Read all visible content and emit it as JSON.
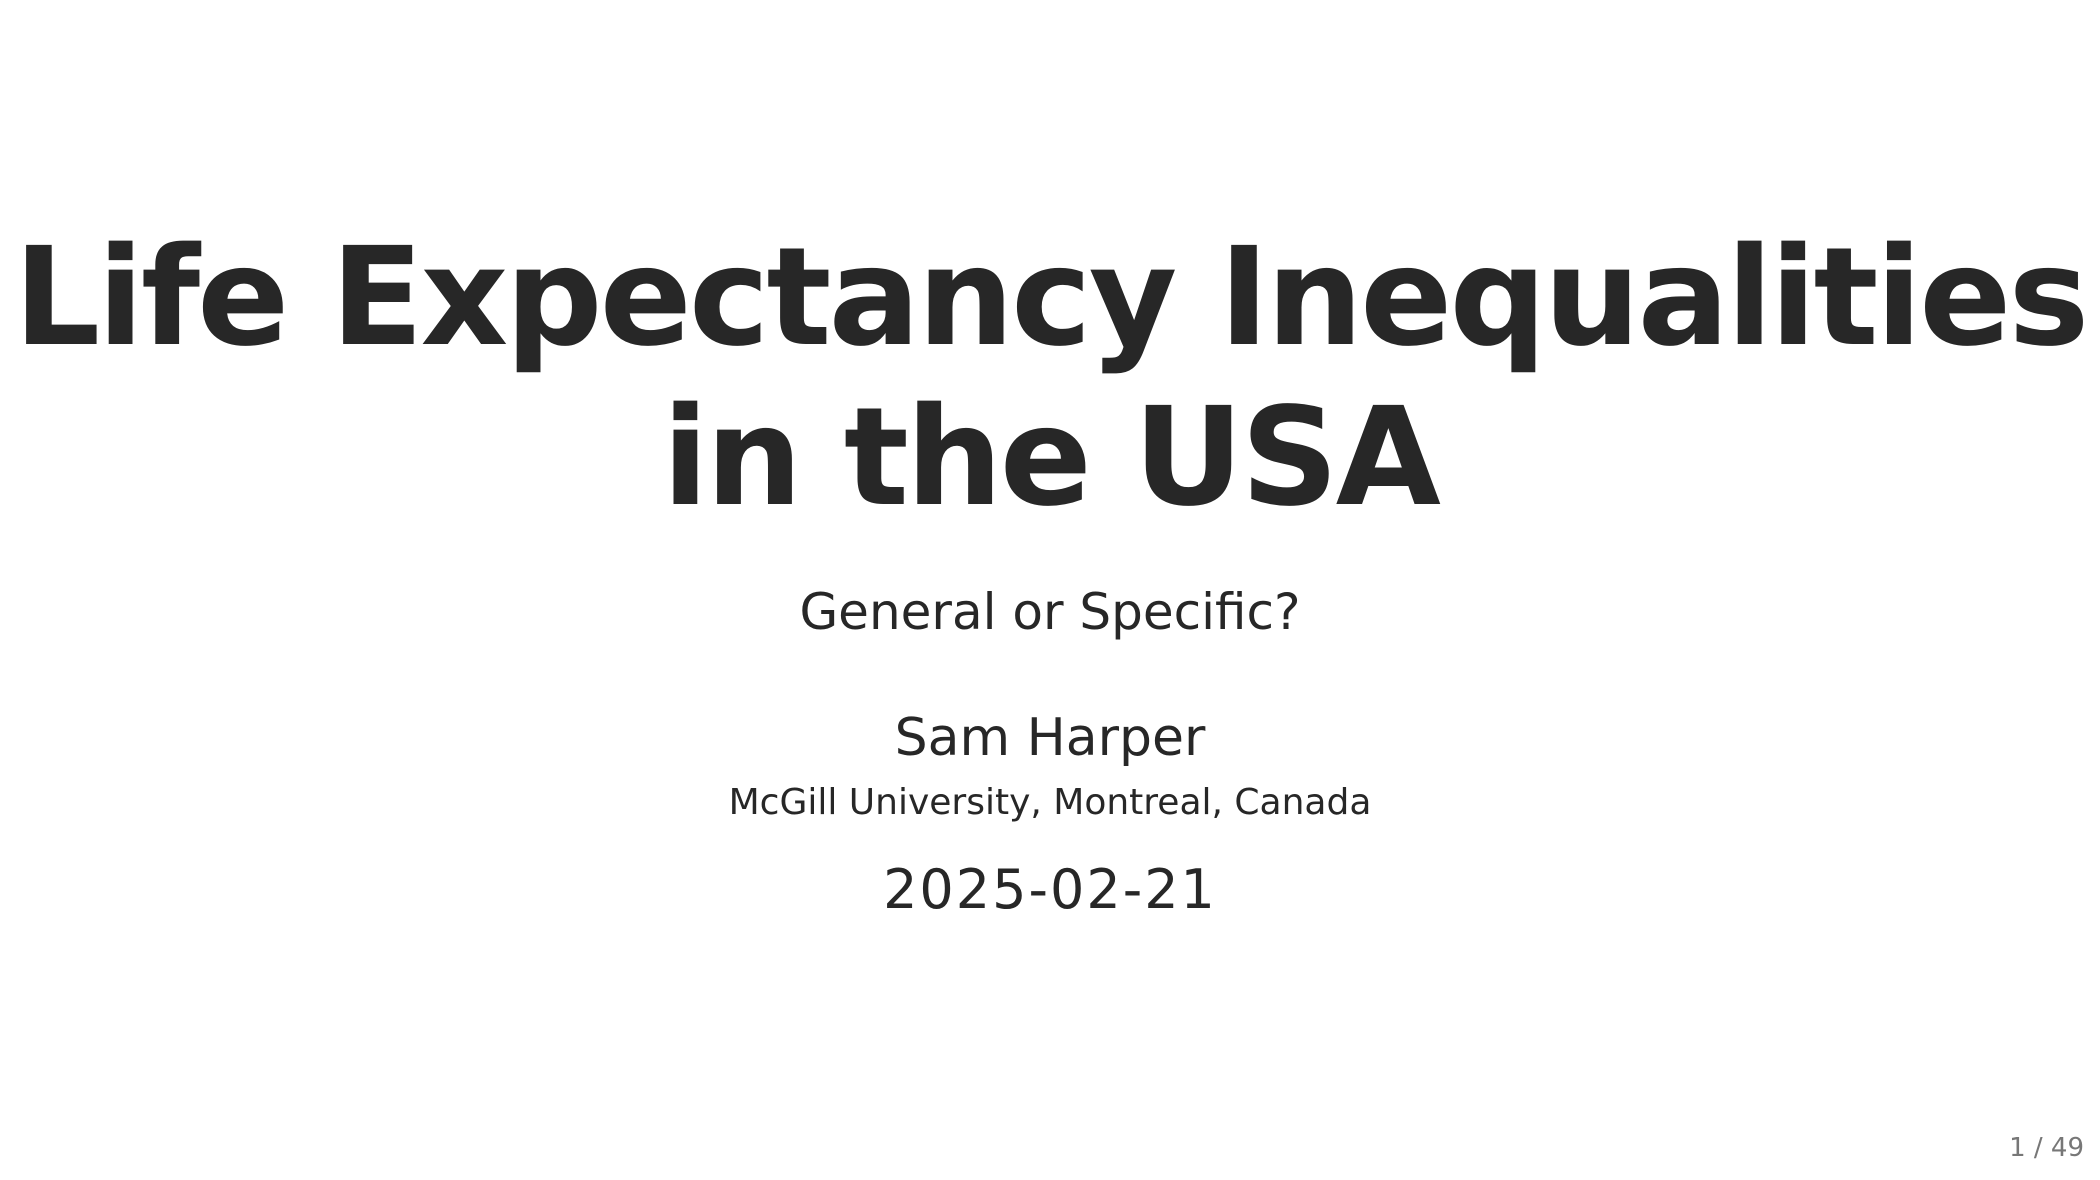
{
  "slide": {
    "title_line1": "Life Expectancy Inequalities",
    "title_line2": "in the USA",
    "subtitle": "General or Specific?",
    "author": "Sam Harper",
    "institute": "McGill University, Montreal, Canada",
    "date": "2025-02-21",
    "slide_number": "1 / 49"
  },
  "colors": {
    "background": "#ffffff",
    "text": "#272727",
    "slide_number": "#777777"
  }
}
